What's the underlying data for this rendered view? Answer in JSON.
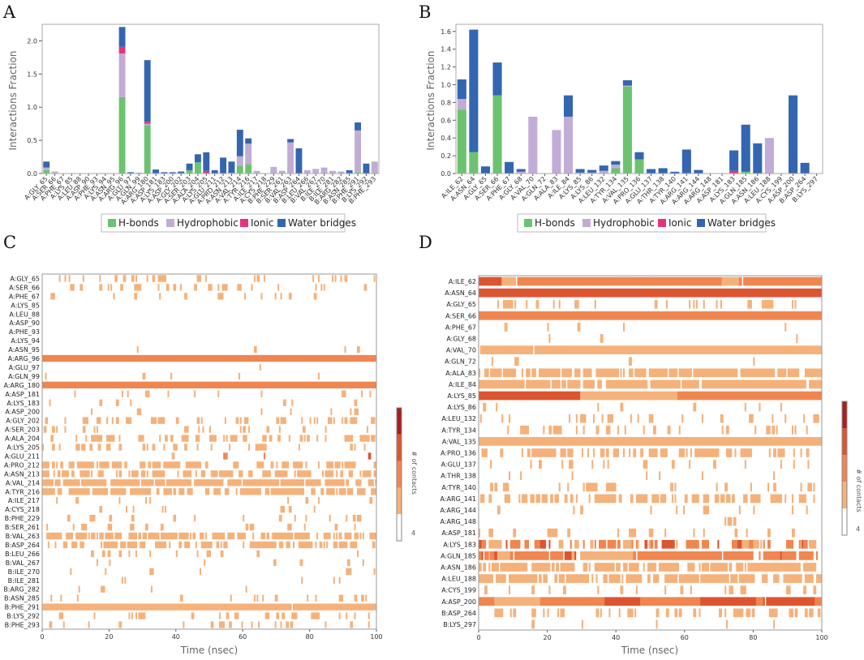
{
  "colors": {
    "hbond": "#6cc36f",
    "hydrophobic": "#c1acd6",
    "ionic": "#e6337a",
    "water": "#3465b0",
    "heat": [
      "#ffffff",
      "#f5b17a",
      "#ef8650",
      "#dc5530",
      "#a91e1e"
    ]
  },
  "chart_data": [
    {
      "panel": "A",
      "type": "bar",
      "stacked": true,
      "ylabel": "Interactions Fraction",
      "ylim": [
        0,
        2.25
      ],
      "yticks": [
        "0.0",
        "0.5",
        "1.0",
        "1.5",
        "2.0"
      ],
      "legend": [
        "H-bonds",
        "Hydrophobic",
        "Ionic",
        "Water bridges"
      ],
      "categories": [
        "A:GLY_65",
        "A:SER_66",
        "A:PHE_67",
        "A:LYS_85",
        "A:LEU_88",
        "A:ASP_90",
        "A:PHE_93",
        "A:LYS_94",
        "A:ASN_95",
        "A:ARG_96",
        "A:GLU_97",
        "A:GLN_99",
        "A:ARG_180",
        "A:ASP_181",
        "A:LYS_183",
        "A:ASP_200",
        "A:GLY_202",
        "A:SER_203",
        "A:ALA_204",
        "A:LYS_205",
        "A:GLU_211",
        "A:PRO_212",
        "A:ASN_213",
        "A:VAL_214",
        "A:TYR_216",
        "A:ILE_217",
        "A:CYS_218",
        "B:PHE_229",
        "B:SER_261",
        "B:VAL_263",
        "B:ASP_264",
        "B:LEU_266",
        "B:VAL_267",
        "B:ILE_270",
        "B:ILE_281",
        "B:ARG_282",
        "B:ASN_285",
        "B:PHE_291",
        "B:LYS_292",
        "B:PHE_293"
      ],
      "series": [
        {
          "name": "H-bonds",
          "values": [
            0.05,
            0,
            0,
            0,
            0,
            0,
            0,
            0,
            0,
            1.15,
            0,
            0,
            0.73,
            0,
            0,
            0,
            0,
            0.05,
            0.17,
            0,
            0,
            0,
            0.01,
            0.12,
            0.14,
            0,
            0,
            0,
            0,
            0,
            0,
            0,
            0,
            0,
            0,
            0,
            0,
            0.02,
            0,
            0
          ]
        },
        {
          "name": "Hydrophobic",
          "values": [
            0.04,
            0.03,
            0,
            0,
            0,
            0,
            0,
            0,
            0,
            0.66,
            0,
            0,
            0.02,
            0,
            0,
            0,
            0,
            0,
            0,
            0,
            0,
            0,
            0,
            0.14,
            0.31,
            0.04,
            0,
            0.1,
            0.04,
            0.47,
            0,
            0.05,
            0.07,
            0.09,
            0.04,
            0.03,
            0,
            0.63,
            0,
            0.18
          ]
        },
        {
          "name": "Ionic",
          "values": [
            0,
            0,
            0,
            0,
            0,
            0,
            0,
            0,
            0,
            0.1,
            0,
            0,
            0.03,
            0,
            0,
            0,
            0,
            0,
            0,
            0.04,
            0,
            0,
            0,
            0,
            0,
            0,
            0,
            0,
            0,
            0,
            0,
            0,
            0,
            0,
            0,
            0,
            0,
            0,
            0,
            0
          ]
        },
        {
          "name": "Water bridges",
          "values": [
            0.09,
            0,
            0,
            0,
            0,
            0,
            0,
            0,
            0,
            0.3,
            0.02,
            0.01,
            0.93,
            0.06,
            0.02,
            0.02,
            0.03,
            0.1,
            0.12,
            0.28,
            0.05,
            0.24,
            0.17,
            0.4,
            0.08,
            0,
            0,
            0,
            0,
            0.05,
            0.38,
            0,
            0,
            0,
            0,
            0,
            0.05,
            0.12,
            0.15,
            0
          ]
        }
      ]
    },
    {
      "panel": "B",
      "type": "bar",
      "stacked": true,
      "ylabel": "Interactions Fraction",
      "ylim": [
        0,
        1.68
      ],
      "yticks": [
        "0.0",
        "0.2",
        "0.4",
        "0.6",
        "0.8",
        "1.0",
        "1.2",
        "1.4",
        "1.6"
      ],
      "legend": [
        "H-bonds",
        "Hydrophobic",
        "Ionic",
        "Water bridges"
      ],
      "categories": [
        "A:ILE_62",
        "A:ASN_64",
        "A:GLY_65",
        "A:SER_66",
        "A:PHE_67",
        "A:GLY_68",
        "A:VAL_70",
        "A:GLN_72",
        "A:ALA_83",
        "A:ILE_84",
        "A:LYS_85",
        "A:LYS_86",
        "A:LEU_132",
        "A:TYR_134",
        "A:VAL_135",
        "A:PRO_136",
        "A:GLU_137",
        "A:THR_138",
        "A:TYR_140",
        "A:ARG_141",
        "A:ARG_144",
        "A:ARG_148",
        "A:ASP_181",
        "A:LYS_183",
        "A:GLN_185",
        "A:ASN_186",
        "A:LEU_188",
        "A:CYS_199",
        "A:ASP_200",
        "B:ASP_264",
        "B:LYS_297"
      ],
      "series": [
        {
          "name": "H-bonds",
          "values": [
            0.72,
            0.24,
            0,
            0.88,
            0,
            0,
            0,
            0,
            0,
            0,
            0,
            0,
            0,
            0.06,
            0.98,
            0.16,
            0,
            0,
            0,
            0,
            0,
            0,
            0,
            0,
            0.02,
            0,
            0,
            0,
            0,
            0,
            0
          ]
        },
        {
          "name": "Hydrophobic",
          "values": [
            0.12,
            0,
            0,
            0,
            0,
            0.02,
            0.64,
            0,
            0.49,
            0.64,
            0.01,
            0.01,
            0.03,
            0.04,
            0.01,
            0,
            0,
            0,
            0,
            0,
            0,
            0,
            0,
            0,
            0,
            0,
            0.4,
            0,
            0,
            0,
            0
          ]
        },
        {
          "name": "Ionic",
          "values": [
            0,
            0,
            0,
            0,
            0,
            0,
            0,
            0,
            0,
            0,
            0,
            0,
            0,
            0,
            0,
            0,
            0,
            0,
            0,
            0,
            0,
            0,
            0,
            0.03,
            0,
            0,
            0,
            0,
            0,
            0,
            0
          ]
        },
        {
          "name": "Water bridges",
          "values": [
            0.22,
            1.38,
            0.08,
            0.37,
            0.13,
            0.03,
            0,
            0,
            0,
            0.24,
            0.04,
            0.03,
            0.06,
            0.04,
            0.06,
            0.08,
            0.05,
            0.06,
            0.02,
            0.27,
            0.04,
            0,
            0,
            0.23,
            0.53,
            0.34,
            0,
            0,
            0.88,
            0.12,
            0
          ]
        }
      ]
    },
    {
      "panel": "C",
      "type": "heatmap",
      "xlabel": "Time (nsec)",
      "xlim": [
        0,
        100
      ],
      "xticks": [
        "0",
        "20",
        "40",
        "60",
        "80",
        "100"
      ],
      "colorbar_label": "# of contacts",
      "colorbar_ticks": [
        "4"
      ],
      "rows": [
        {
          "label": "A:GLY_65",
          "density": 0.12,
          "level": 1
        },
        {
          "label": "A:SER_66",
          "density": 0.15,
          "level": 1
        },
        {
          "label": "A:PHE_67",
          "density": 0.03,
          "level": 1
        },
        {
          "label": "A:LYS_85",
          "density": 0,
          "level": 1
        },
        {
          "label": "A:LEU_88",
          "density": 0,
          "level": 1
        },
        {
          "label": "A:ASP_90",
          "density": 0,
          "level": 1
        },
        {
          "label": "A:PHE_93",
          "density": 0,
          "level": 1
        },
        {
          "label": "A:LYS_94",
          "density": 0,
          "level": 1
        },
        {
          "label": "A:ASN_95",
          "density": 0.01,
          "level": 1
        },
        {
          "label": "A:ARG_96",
          "density": 1,
          "level": 3
        },
        {
          "label": "A:GLU_97",
          "density": 0.02,
          "level": 1
        },
        {
          "label": "A:GLN_99",
          "density": 0.01,
          "level": 1
        },
        {
          "label": "A:ARG_180",
          "density": 1,
          "level": 2
        },
        {
          "label": "A:ASP_181",
          "density": 0.06,
          "level": 1
        },
        {
          "label": "A:LYS_183",
          "density": 0.03,
          "level": 1
        },
        {
          "label": "A:ASP_200",
          "density": 0.05,
          "level": 1
        },
        {
          "label": "A:GLY_202",
          "density": 0.18,
          "level": 1
        },
        {
          "label": "A:SER_203",
          "density": 0.1,
          "level": 1
        },
        {
          "label": "A:ALA_204",
          "density": 0.22,
          "level": 1
        },
        {
          "label": "A:LYS_205",
          "density": 0.1,
          "level": 1
        },
        {
          "label": "A:GLU_211",
          "density": 0.06,
          "level": 2
        },
        {
          "label": "A:PRO_212",
          "density": 0.25,
          "level": 1
        },
        {
          "label": "A:ASN_213",
          "density": 0.3,
          "level": 1
        },
        {
          "label": "A:VAL_214",
          "density": 0.55,
          "level": 1
        },
        {
          "label": "A:TYR_216",
          "density": 0.45,
          "level": 1
        },
        {
          "label": "A:ILE_217",
          "density": 0.04,
          "level": 1
        },
        {
          "label": "A:CYS_218",
          "density": 0.02,
          "level": 1
        },
        {
          "label": "B:PHE_229",
          "density": 0.04,
          "level": 1
        },
        {
          "label": "B:SER_261",
          "density": 0.06,
          "level": 1
        },
        {
          "label": "B:VAL_263",
          "density": 0.4,
          "level": 1
        },
        {
          "label": "B:ASP_264",
          "density": 0.3,
          "level": 1
        },
        {
          "label": "B:LEU_266",
          "density": 0.05,
          "level": 1
        },
        {
          "label": "B:VAL_267",
          "density": 0.04,
          "level": 1
        },
        {
          "label": "B:ILE_270",
          "density": 0.03,
          "level": 1
        },
        {
          "label": "B:ILE_281",
          "density": 0.03,
          "level": 1
        },
        {
          "label": "B:ARG_282",
          "density": 0.02,
          "level": 1
        },
        {
          "label": "B:ASN_285",
          "density": 0.05,
          "level": 1
        },
        {
          "label": "B:PHE_291",
          "density": 0.9,
          "level": 1
        },
        {
          "label": "B:LYS_292",
          "density": 0.12,
          "level": 1
        },
        {
          "label": "B:PHE_293",
          "density": 0.08,
          "level": 1
        }
      ]
    },
    {
      "panel": "D",
      "type": "heatmap",
      "xlabel": "Time (nsec)",
      "xlim": [
        0,
        100
      ],
      "xticks": [
        "0",
        "20",
        "40",
        "60",
        "80",
        "100"
      ],
      "colorbar_label": "# of contacts",
      "colorbar_ticks": [
        "4"
      ],
      "rows": [
        {
          "label": "A:ILE_62",
          "density": 0.9,
          "level": 2
        },
        {
          "label": "A:ASN_64",
          "density": 1,
          "level": 3
        },
        {
          "label": "A:GLY_65",
          "density": 0.08,
          "level": 1
        },
        {
          "label": "A:SER_66",
          "density": 1,
          "level": 2
        },
        {
          "label": "A:PHE_67",
          "density": 0.03,
          "level": 1
        },
        {
          "label": "A:GLY_68",
          "density": 0.04,
          "level": 1
        },
        {
          "label": "A:VAL_70",
          "density": 0.7,
          "level": 1
        },
        {
          "label": "A:GLN_72",
          "density": 0.03,
          "level": 1
        },
        {
          "label": "A:ALA_83",
          "density": 0.5,
          "level": 1
        },
        {
          "label": "A:ILE_84",
          "density": 0.6,
          "level": 1
        },
        {
          "label": "A:LYS_85",
          "density": 0.95,
          "level": 2
        },
        {
          "label": "A:LYS_86",
          "density": 0.05,
          "level": 1
        },
        {
          "label": "A:LEU_132",
          "density": 0.1,
          "level": 1
        },
        {
          "label": "A:TYR_134",
          "density": 0.15,
          "level": 1
        },
        {
          "label": "A:VAL_135",
          "density": 1,
          "level": 1
        },
        {
          "label": "A:PRO_136",
          "density": 0.25,
          "level": 1
        },
        {
          "label": "A:GLU_137",
          "density": 0.06,
          "level": 1
        },
        {
          "label": "A:THR_138",
          "density": 0.04,
          "level": 1
        },
        {
          "label": "A:TYR_140",
          "density": 0.08,
          "level": 1
        },
        {
          "label": "A:ARG_141",
          "density": 0.3,
          "level": 1
        },
        {
          "label": "A:ARG_144",
          "density": 0.05,
          "level": 1
        },
        {
          "label": "A:ARG_148",
          "density": 0.02,
          "level": 1
        },
        {
          "label": "A:ASP_181",
          "density": 0.1,
          "level": 1
        },
        {
          "label": "A:LYS_183",
          "density": 0.3,
          "level": 2
        },
        {
          "label": "A:GLN_185",
          "density": 0.55,
          "level": 2
        },
        {
          "label": "A:ASN_186",
          "density": 0.4,
          "level": 1
        },
        {
          "label": "A:LEU_188",
          "density": 0.4,
          "level": 1
        },
        {
          "label": "A:CYS_199",
          "density": 0.08,
          "level": 1
        },
        {
          "label": "A:ASP_200",
          "density": 0.9,
          "level": 2
        },
        {
          "label": "B:ASP_264",
          "density": 0.15,
          "level": 1
        },
        {
          "label": "B:LYS_297",
          "density": 0.02,
          "level": 1
        }
      ]
    }
  ]
}
